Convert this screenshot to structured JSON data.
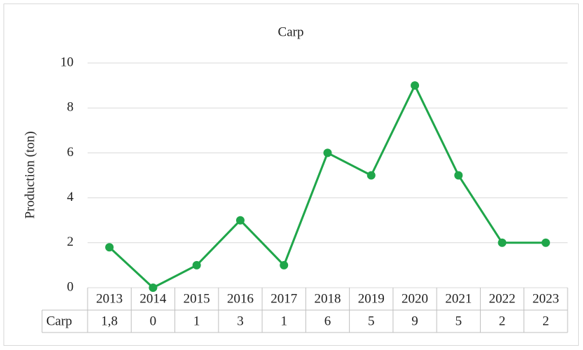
{
  "chart_data": {
    "type": "line",
    "title": "Carp",
    "y_label": "Production (ton)",
    "categories": [
      "2013",
      "2014",
      "2015",
      "2016",
      "2017",
      "2018",
      "2019",
      "2020",
      "2021",
      "2022",
      "2023"
    ],
    "series": [
      {
        "name": "Carp",
        "color": "#1fa64a",
        "values": [
          1.8,
          0,
          1,
          3,
          1,
          6,
          5,
          9,
          5,
          2,
          2
        ],
        "value_labels": [
          "1,8",
          "0",
          "1",
          "3",
          "1",
          "6",
          "5",
          "9",
          "5",
          "2",
          "2"
        ]
      }
    ],
    "ylim": [
      0,
      10
    ],
    "yticks": [
      0,
      2,
      4,
      6,
      8,
      10
    ],
    "grid": true
  }
}
